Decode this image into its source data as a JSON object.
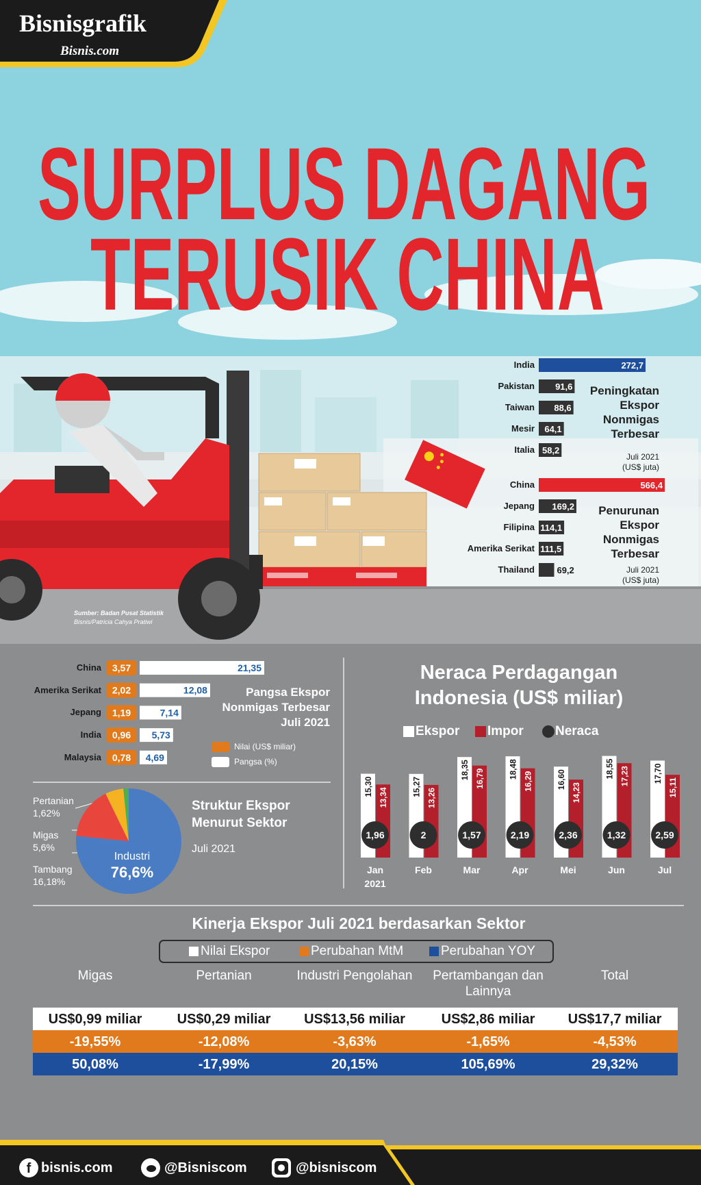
{
  "brand": {
    "name": "Bisnisgrafik",
    "site": "Bisnis.com"
  },
  "title": [
    "SURPLUS DAGANG",
    "TERUSIK CHINA"
  ],
  "source": {
    "text": "Sumber: Badan Pusat Statistik",
    "credit": "Bisnis/Patricia Cahya Pratiwi"
  },
  "chart_data": [
    {
      "type": "hbar",
      "title": "Peningkatan Ekspor Nonmigas Terbesar",
      "subtitle": "Juli 2021 (US$ juta)",
      "categories": [
        "India",
        "Pakistan",
        "Taiwan",
        "Mesir",
        "Italia"
      ],
      "values": [
        272.7,
        91.6,
        88.6,
        64.1,
        58.2
      ],
      "value_labels": [
        "272,7",
        "91,6",
        "88,6",
        "64,1",
        "58,2"
      ],
      "colors": [
        "#1d4f9c",
        "#333333",
        "#333333",
        "#333333",
        "#333333"
      ]
    },
    {
      "type": "hbar",
      "title": "Penurunan Ekspor Nonmigas Terbesar",
      "subtitle": "Juli 2021 (US$ juta)",
      "categories": [
        "China",
        "Jepang",
        "Filipina",
        "Amerika Serikat",
        "Thailand"
      ],
      "values": [
        566.4,
        169.2,
        114.1,
        111.5,
        69.2
      ],
      "value_labels": [
        "566,4",
        "169,2",
        "114,1",
        "111,5",
        "69,2"
      ],
      "colors": [
        "#e3262b",
        "#333333",
        "#333333",
        "#333333",
        "#333333"
      ]
    },
    {
      "type": "hbar-pair",
      "title": "Pangsa Ekspor Nonmigas Terbesar Juli 2021",
      "categories": [
        "China",
        "Amerika Serikat",
        "Jepang",
        "India",
        "Malaysia"
      ],
      "series": [
        {
          "name": "Nilai (US$ miliar)",
          "color": "#e07a1c",
          "values": [
            3.57,
            2.02,
            1.19,
            0.96,
            0.78
          ],
          "value_labels": [
            "3,57",
            "2,02",
            "1,19",
            "0,96",
            "0,78"
          ]
        },
        {
          "name": "Pangsa (%)",
          "color": "#ffffff",
          "values": [
            21.35,
            12.08,
            7.14,
            5.73,
            4.69
          ],
          "value_labels": [
            "21,35",
            "12,08",
            "7,14",
            "5,73",
            "4,69"
          ]
        }
      ]
    },
    {
      "type": "pie",
      "title": "Struktur Ekspor Menurut Sektor",
      "subtitle": "Juli 2021",
      "categories": [
        "Industri",
        "Tambang",
        "Migas",
        "Pertanian"
      ],
      "values": [
        76.6,
        16.18,
        5.6,
        1.62
      ],
      "value_labels": [
        "76,6%",
        "16,18%",
        "5,6%",
        "1,62%"
      ],
      "colors": [
        "#4a7cc4",
        "#e8453c",
        "#f5b324",
        "#4caf50"
      ]
    },
    {
      "type": "grouped-bar",
      "title": "Neraca Perdagangan Indonesia (US$ miliar)",
      "categories": [
        "Jan 2021",
        "Feb",
        "Mar",
        "Apr",
        "Mei",
        "Jun",
        "Jul"
      ],
      "series": [
        {
          "name": "Ekspor",
          "color": "#ffffff",
          "values": [
            15.3,
            15.27,
            18.35,
            18.48,
            16.6,
            18.55,
            17.7
          ],
          "value_labels": [
            "15,30",
            "15,27",
            "18,35",
            "18,48",
            "16,60",
            "18,55",
            "17,70"
          ]
        },
        {
          "name": "Impor",
          "color": "#b3202c",
          "values": [
            13.34,
            13.26,
            16.79,
            16.29,
            14.23,
            17.23,
            15.11
          ],
          "value_labels": [
            "13,34",
            "13,26",
            "16,79",
            "16,29",
            "14,23",
            "17,23",
            "15,11"
          ]
        },
        {
          "name": "Neraca",
          "color": "#2e2e2e",
          "mark": "circle",
          "values": [
            1.96,
            2,
            1.57,
            2.19,
            2.36,
            1.32,
            2.59
          ],
          "value_labels": [
            "1,96",
            "2",
            "1,57",
            "2,19",
            "2,36",
            "1,32",
            "2,59"
          ]
        }
      ]
    }
  ],
  "table": {
    "title": "Kinerja Ekspor Juli 2021 berdasarkan Sektor",
    "legend": [
      "Nilai Ekspor",
      "Perubahan MtM",
      "Perubahan YOY"
    ],
    "legend_colors": [
      "#ffffff",
      "#e07a1c",
      "#1d4f9c"
    ],
    "columns": [
      "Migas",
      "Pertanian",
      "Industri Pengolahan",
      "Pertambangan dan Lainnya",
      "Total"
    ],
    "rows": [
      [
        "US$0,99 miliar",
        "US$0,29 miliar",
        "US$13,56 miliar",
        "US$2,86 miliar",
        "US$17,7 miliar"
      ],
      [
        "-19,55%",
        "-12,08%",
        "-3,63%",
        "-1,65%",
        "-4,53%"
      ],
      [
        "50,08%",
        "-17,99%",
        "20,15%",
        "105,69%",
        "29,32%"
      ]
    ]
  },
  "footer": {
    "facebook": "bisnis.com",
    "twitter": "@Bisniscom",
    "instagram": "@bisniscom"
  }
}
